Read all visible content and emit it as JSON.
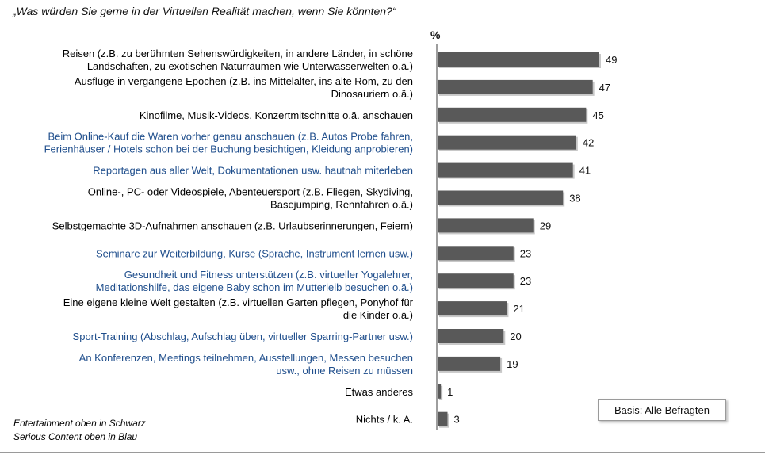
{
  "question": "„Was würden Sie gerne in der Virtuellen Realität machen, wenn Sie könnten?“",
  "unit_label": "%",
  "colors": {
    "bar": "#595959",
    "entertainment": "#000000",
    "serious": "#1f4e8c"
  },
  "chart_data": {
    "type": "bar",
    "orientation": "horizontal",
    "categories": [
      [
        "Reisen (z.B. zu berühmten Sehenswürdigkeiten, in andere Länder, in schöne",
        "Landschaften, zu exotischen Naturräumen wie Unterwasserwelten o.ä.)"
      ],
      [
        "Ausflüge in vergangene Epochen (z.B. ins Mittelalter, ins alte Rom, zu den",
        "Dinosauriern o.ä.)"
      ],
      [
        "Kinofilme, Musik-Videos, Konzertmitschnitte o.ä. anschauen"
      ],
      [
        "Beim Online-Kauf die Waren vorher genau anschauen (z.B. Autos Probe fahren,",
        "Ferienhäuser / Hotels schon bei der Buchung besichtigen, Kleidung anprobieren)"
      ],
      [
        "Reportagen aus aller Welt, Dokumentationen usw. hautnah miterleben"
      ],
      [
        "Online-, PC- oder Videospiele, Abenteuersport (z.B. Fliegen, Skydiving,",
        "Basejumping, Rennfahren o.ä.)"
      ],
      [
        "Selbstgemachte 3D-Aufnahmen anschauen (z.B. Urlaubserinnerungen, Feiern)"
      ],
      [
        "Seminare zur Weiterbildung, Kurse (Sprache, Instrument lernen usw.)"
      ],
      [
        "Gesundheit und Fitness unterstützen (z.B. virtueller Yogalehrer,",
        "Meditationshilfe, das eigene Baby schon im Mutterleib besuchen o.ä.)"
      ],
      [
        "Eine eigene kleine Welt gestalten (z.B. virtuellen Garten pflegen, Ponyhof für",
        "die Kinder o.ä.)"
      ],
      [
        "Sport-Training (Abschlag, Aufschlag üben, virtueller Sparring-Partner usw.)"
      ],
      [
        "An Konferenzen, Meetings teilnehmen, Ausstellungen, Messen besuchen",
        "usw., ohne Reisen zu müssen"
      ],
      [
        "Etwas anderes"
      ],
      [
        "Nichts / k. A."
      ]
    ],
    "values": [
      49,
      47,
      45,
      42,
      41,
      38,
      29,
      23,
      23,
      21,
      20,
      19,
      1,
      3
    ],
    "category_group": [
      "entertainment",
      "entertainment",
      "entertainment",
      "serious",
      "serious",
      "entertainment",
      "entertainment",
      "serious",
      "serious",
      "entertainment",
      "serious",
      "serious",
      "entertainment",
      "entertainment"
    ],
    "xlim": [
      0,
      50
    ]
  },
  "legend_notes": {
    "entertainment": "Entertainment oben in Schwarz",
    "serious": "Serious Content oben in Blau"
  },
  "basis": "Basis: Alle Befragten"
}
